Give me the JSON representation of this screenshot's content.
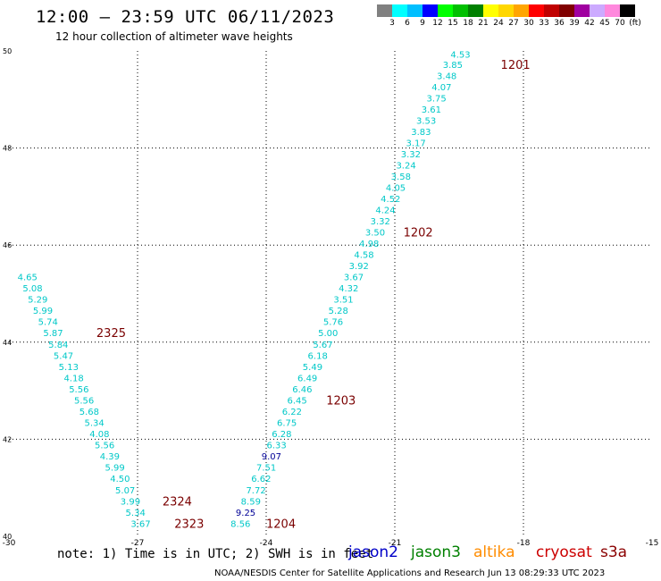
{
  "title": "12:00 – 23:59 UTC 06/11/2023",
  "subtitle": "12 hour collection of altimeter wave heights",
  "legend": {
    "colors": [
      "#808080",
      "#00ffff",
      "#00bfff",
      "#0000ff",
      "#00ff00",
      "#00c000",
      "#008000",
      "#ffff00",
      "#ffd700",
      "#ffa500",
      "#ff0000",
      "#c00000",
      "#800000",
      "#a000a0",
      "#ccaaff",
      "#ff88dd",
      "#000000"
    ],
    "labels": [
      "3",
      "6",
      "9",
      "12",
      "15",
      "18",
      "21",
      "24",
      "27",
      "30",
      "33",
      "36",
      "39",
      "42",
      "45",
      "70",
      "(ft)"
    ]
  },
  "axes": {
    "x_ticks": [
      "-30",
      "-27",
      "-24",
      "-21",
      "-18",
      "-15"
    ],
    "y_ticks": [
      "40",
      "42",
      "44",
      "46",
      "48",
      "50"
    ]
  },
  "chart_data": {
    "type": "scatter",
    "x_range": [
      -30,
      -15
    ],
    "y_range": [
      40,
      50
    ],
    "grid": true,
    "series": [
      {
        "name": "jason2",
        "color": "#0000c8",
        "points": []
      },
      {
        "name": "jason3",
        "color": "#008000",
        "points": []
      },
      {
        "name": "altika",
        "color": "#ff8c00",
        "points": []
      },
      {
        "name": "cryosat",
        "color": "#cc0000",
        "points": []
      },
      {
        "name": "s3a",
        "color": "#8b0000",
        "points": [
          {
            "x": -19.7,
            "y": 49.94,
            "v": "4.53",
            "c": "#00c8c8"
          },
          {
            "x": -19.88,
            "y": 49.72,
            "v": "3.85",
            "c": "#00c8c8"
          },
          {
            "x": -20.02,
            "y": 49.49,
            "v": "3.48",
            "c": "#00c8c8"
          },
          {
            "x": -20.14,
            "y": 49.26,
            "v": "4.07",
            "c": "#00c8c8"
          },
          {
            "x": -20.26,
            "y": 49.03,
            "v": "3.75",
            "c": "#00c8c8"
          },
          {
            "x": -20.38,
            "y": 48.8,
            "v": "3.61",
            "c": "#00c8c8"
          },
          {
            "x": -20.5,
            "y": 48.57,
            "v": "3.53",
            "c": "#00c8c8"
          },
          {
            "x": -20.62,
            "y": 48.34,
            "v": "3.83",
            "c": "#00c8c8"
          },
          {
            "x": -20.74,
            "y": 48.11,
            "v": "3.17",
            "c": "#00c8c8"
          },
          {
            "x": -20.86,
            "y": 47.88,
            "v": "3.32",
            "c": "#00c8c8"
          },
          {
            "x": -20.97,
            "y": 47.65,
            "v": "3.24",
            "c": "#00c8c8"
          },
          {
            "x": -21.09,
            "y": 47.42,
            "v": "3.58",
            "c": "#00c8c8"
          },
          {
            "x": -21.21,
            "y": 47.19,
            "v": "4.05",
            "c": "#00c8c8"
          },
          {
            "x": -21.33,
            "y": 46.96,
            "v": "4.52",
            "c": "#00c8c8"
          },
          {
            "x": -21.45,
            "y": 46.73,
            "v": "4.24",
            "c": "#00c8c8"
          },
          {
            "x": -21.57,
            "y": 46.5,
            "v": "3.32",
            "c": "#00c8c8"
          },
          {
            "x": -21.69,
            "y": 46.27,
            "v": "3.50",
            "c": "#00c8c8"
          },
          {
            "x": -21.83,
            "y": 46.04,
            "v": "4.98",
            "c": "#00c8c8"
          },
          {
            "x": -21.95,
            "y": 45.81,
            "v": "4.58",
            "c": "#00c8c8"
          },
          {
            "x": -22.07,
            "y": 45.58,
            "v": "3.92",
            "c": "#00c8c8"
          },
          {
            "x": -22.19,
            "y": 45.35,
            "v": "3.67",
            "c": "#00c8c8"
          },
          {
            "x": -22.31,
            "y": 45.12,
            "v": "4.32",
            "c": "#00c8c8"
          },
          {
            "x": -22.43,
            "y": 44.89,
            "v": "3.51",
            "c": "#00c8c8"
          },
          {
            "x": -22.55,
            "y": 44.66,
            "v": "5.28",
            "c": "#00c8c8"
          },
          {
            "x": -22.67,
            "y": 44.43,
            "v": "5.76",
            "c": "#00c8c8"
          },
          {
            "x": -22.79,
            "y": 44.2,
            "v": "5.00",
            "c": "#00c8c8"
          },
          {
            "x": -22.91,
            "y": 43.96,
            "v": "5.67",
            "c": "#00c8c8"
          },
          {
            "x": -23.03,
            "y": 43.73,
            "v": "6.18",
            "c": "#00c8c8"
          },
          {
            "x": -23.15,
            "y": 43.5,
            "v": "5.49",
            "c": "#00c8c8"
          },
          {
            "x": -23.27,
            "y": 43.27,
            "v": "6.49",
            "c": "#00c8c8"
          },
          {
            "x": -23.39,
            "y": 43.04,
            "v": "6.46",
            "c": "#00c8c8"
          },
          {
            "x": -23.51,
            "y": 42.81,
            "v": "6.45",
            "c": "#00c8c8"
          },
          {
            "x": -23.63,
            "y": 42.58,
            "v": "6.22",
            "c": "#00c8c8"
          },
          {
            "x": -23.75,
            "y": 42.35,
            "v": "6.75",
            "c": "#00c8c8"
          },
          {
            "x": -23.87,
            "y": 42.12,
            "v": "6.28",
            "c": "#00c8c8"
          },
          {
            "x": -23.99,
            "y": 41.89,
            "v": "6.33",
            "c": "#00c8c8"
          },
          {
            "x": -24.11,
            "y": 41.66,
            "v": "9.07",
            "c": "#000096"
          },
          {
            "x": -24.23,
            "y": 41.43,
            "v": "7.51",
            "c": "#00c8c8"
          },
          {
            "x": -24.35,
            "y": 41.2,
            "v": "6.62",
            "c": "#00c8c8"
          },
          {
            "x": -24.47,
            "y": 40.96,
            "v": "7.72",
            "c": "#00c8c8"
          },
          {
            "x": -24.59,
            "y": 40.73,
            "v": "8.59",
            "c": "#00c8c8"
          },
          {
            "x": -24.71,
            "y": 40.5,
            "v": "9.25",
            "c": "#000096"
          },
          {
            "x": -24.83,
            "y": 40.27,
            "v": "8.56",
            "c": "#00c8c8"
          },
          {
            "x": -29.8,
            "y": 45.35,
            "v": "4.65",
            "c": "#00c8c8"
          },
          {
            "x": -29.68,
            "y": 45.12,
            "v": "5.08",
            "c": "#00c8c8"
          },
          {
            "x": -29.56,
            "y": 44.89,
            "v": "5.29",
            "c": "#00c8c8"
          },
          {
            "x": -29.44,
            "y": 44.66,
            "v": "5.99",
            "c": "#00c8c8"
          },
          {
            "x": -29.32,
            "y": 44.43,
            "v": "5.74",
            "c": "#00c8c8"
          },
          {
            "x": -29.2,
            "y": 44.2,
            "v": "5.87",
            "c": "#00c8c8"
          },
          {
            "x": -29.08,
            "y": 43.96,
            "v": "5.84",
            "c": "#00c8c8"
          },
          {
            "x": -28.96,
            "y": 43.73,
            "v": "5.47",
            "c": "#00c8c8"
          },
          {
            "x": -28.84,
            "y": 43.5,
            "v": "5.13",
            "c": "#00c8c8"
          },
          {
            "x": -28.72,
            "y": 43.27,
            "v": "4.18",
            "c": "#00c8c8"
          },
          {
            "x": -28.6,
            "y": 43.04,
            "v": "5.56",
            "c": "#00c8c8"
          },
          {
            "x": -28.48,
            "y": 42.81,
            "v": "5.56",
            "c": "#00c8c8"
          },
          {
            "x": -28.36,
            "y": 42.58,
            "v": "5.68",
            "c": "#00c8c8"
          },
          {
            "x": -28.24,
            "y": 42.35,
            "v": "5.34",
            "c": "#00c8c8"
          },
          {
            "x": -28.12,
            "y": 42.12,
            "v": "4.08",
            "c": "#00c8c8"
          },
          {
            "x": -28.0,
            "y": 41.89,
            "v": "5.56",
            "c": "#00c8c8"
          },
          {
            "x": -27.88,
            "y": 41.66,
            "v": "4.39",
            "c": "#00c8c8"
          },
          {
            "x": -27.76,
            "y": 41.43,
            "v": "5.99",
            "c": "#00c8c8"
          },
          {
            "x": -27.64,
            "y": 41.2,
            "v": "4.50",
            "c": "#00c8c8"
          },
          {
            "x": -27.52,
            "y": 40.96,
            "v": "5.07",
            "c": "#00c8c8"
          },
          {
            "x": -27.4,
            "y": 40.73,
            "v": "3.99",
            "c": "#00c8c8"
          },
          {
            "x": -27.28,
            "y": 40.5,
            "v": "5.34",
            "c": "#00c8c8"
          },
          {
            "x": -27.16,
            "y": 40.27,
            "v": "3.67",
            "c": "#00c8c8"
          }
        ]
      }
    ],
    "time_labels": [
      {
        "x": -18.53,
        "y": 49.72,
        "t": "1201"
      },
      {
        "x": -20.8,
        "y": 46.27,
        "t": "1202"
      },
      {
        "x": -22.6,
        "y": 42.81,
        "t": "1203"
      },
      {
        "x": -24.0,
        "y": 40.27,
        "t": "1204"
      },
      {
        "x": -27.96,
        "y": 44.2,
        "t": "2325"
      },
      {
        "x": -26.42,
        "y": 40.73,
        "t": "2324"
      },
      {
        "x": -26.14,
        "y": 40.27,
        "t": "2323"
      }
    ]
  },
  "note": "note: 1) Time is in UTC; 2) SWH is in feet",
  "satellites": [
    {
      "name": "jason2",
      "color": "#0000c8"
    },
    {
      "name": "jason3",
      "color": "#008000"
    },
    {
      "name": "altika",
      "color": "#ff8c00"
    },
    {
      "name": "cryosat",
      "color": "#cc0000"
    },
    {
      "name": "s3a",
      "color": "#8b0000"
    }
  ],
  "footer": "NOAA/NESDIS Center for Satellite Applications and Research   Jun 13 08:29:33 UTC 2023"
}
